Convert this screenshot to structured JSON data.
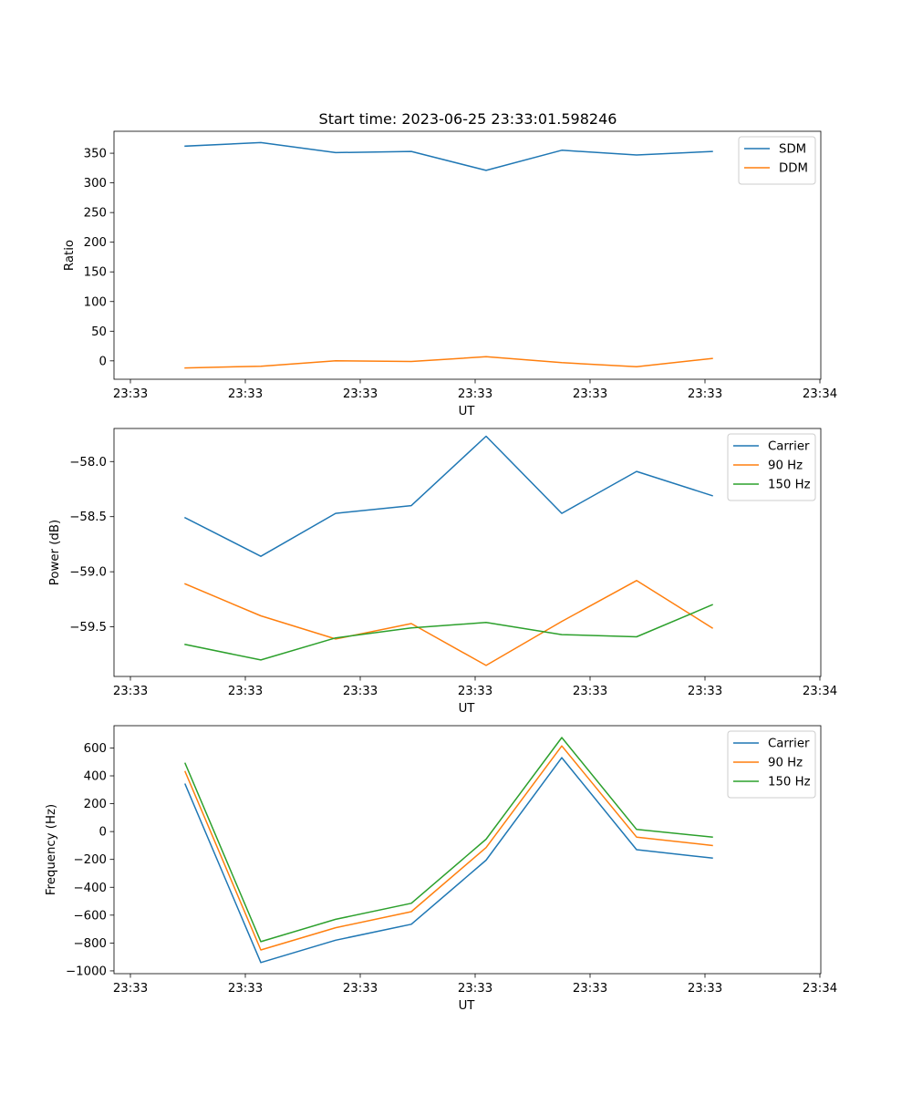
{
  "figure": {
    "title": "Start time: 2023-06-25 23:33:01.598246"
  },
  "chart_data": [
    {
      "type": "line",
      "title": "Start time: 2023-06-25 23:33:01.598246",
      "xlabel": "UT",
      "ylabel": "Ratio",
      "x": [
        "23:33",
        "23:33",
        "23:33",
        "23:33",
        "23:33",
        "23:33",
        "23:33",
        "23:33"
      ],
      "xticks": [
        "23:33",
        "23:33",
        "23:33",
        "23:33",
        "23:33",
        "23:33",
        "23:34"
      ],
      "ylim": [
        -31,
        387
      ],
      "yticks": [
        0,
        50,
        100,
        150,
        200,
        250,
        300,
        350
      ],
      "grid": false,
      "legend": "top-right",
      "series": [
        {
          "name": "SDM",
          "color": "#1f77b4",
          "values": [
            362,
            368,
            351,
            353,
            321,
            355,
            347,
            353
          ]
        },
        {
          "name": "DDM",
          "color": "#ff7f0e",
          "values": [
            -12,
            -9,
            0,
            -1,
            7,
            -3,
            -10,
            4
          ]
        }
      ]
    },
    {
      "type": "line",
      "title": "",
      "xlabel": "UT",
      "ylabel": "Power (dB)",
      "x": [
        "23:33",
        "23:33",
        "23:33",
        "23:33",
        "23:33",
        "23:33",
        "23:33",
        "23:33"
      ],
      "xticks": [
        "23:33",
        "23:33",
        "23:33",
        "23:33",
        "23:33",
        "23:33",
        "23:34"
      ],
      "ylim": [
        -59.95,
        -57.7
      ],
      "yticks": [
        -58.0,
        -58.5,
        -59.0,
        -59.5
      ],
      "ytick_labels": [
        "−58.0",
        "−58.5",
        "−59.0",
        "−59.5"
      ],
      "grid": false,
      "legend": "top-right",
      "series": [
        {
          "name": "Carrier",
          "color": "#1f77b4",
          "values": [
            -58.51,
            -58.86,
            -58.47,
            -58.4,
            -57.77,
            -58.47,
            -58.09,
            -58.31
          ]
        },
        {
          "name": "90 Hz",
          "color": "#ff7f0e",
          "values": [
            -59.11,
            -59.4,
            -59.61,
            -59.47,
            -59.85,
            -59.45,
            -59.08,
            -59.51
          ]
        },
        {
          "name": "150 Hz",
          "color": "#2ca02c",
          "values": [
            -59.66,
            -59.8,
            -59.6,
            -59.51,
            -59.46,
            -59.57,
            -59.59,
            -59.3
          ]
        }
      ]
    },
    {
      "type": "line",
      "title": "",
      "xlabel": "UT",
      "ylabel": "Frequency (Hz)",
      "x": [
        "23:33",
        "23:33",
        "23:33",
        "23:33",
        "23:33",
        "23:33",
        "23:33",
        "23:33"
      ],
      "xticks": [
        "23:33",
        "23:33",
        "23:33",
        "23:33",
        "23:33",
        "23:33",
        "23:34"
      ],
      "ylim": [
        -1020,
        760
      ],
      "yticks": [
        600,
        400,
        200,
        0,
        -200,
        -400,
        -600,
        -800,
        -1000
      ],
      "ytick_labels": [
        "600",
        "400",
        "200",
        "0",
        "−200",
        "−400",
        "−600",
        "−800",
        "−1000"
      ],
      "grid": false,
      "legend": "top-right",
      "series": [
        {
          "name": "Carrier",
          "color": "#1f77b4",
          "values": [
            340,
            -940,
            -780,
            -665,
            -205,
            530,
            -130,
            -190
          ]
        },
        {
          "name": "90 Hz",
          "color": "#ff7f0e",
          "values": [
            430,
            -850,
            -690,
            -575,
            -115,
            615,
            -40,
            -100
          ]
        },
        {
          "name": "150 Hz",
          "color": "#2ca02c",
          "values": [
            490,
            -790,
            -630,
            -515,
            -55,
            675,
            15,
            -40
          ]
        }
      ]
    }
  ]
}
